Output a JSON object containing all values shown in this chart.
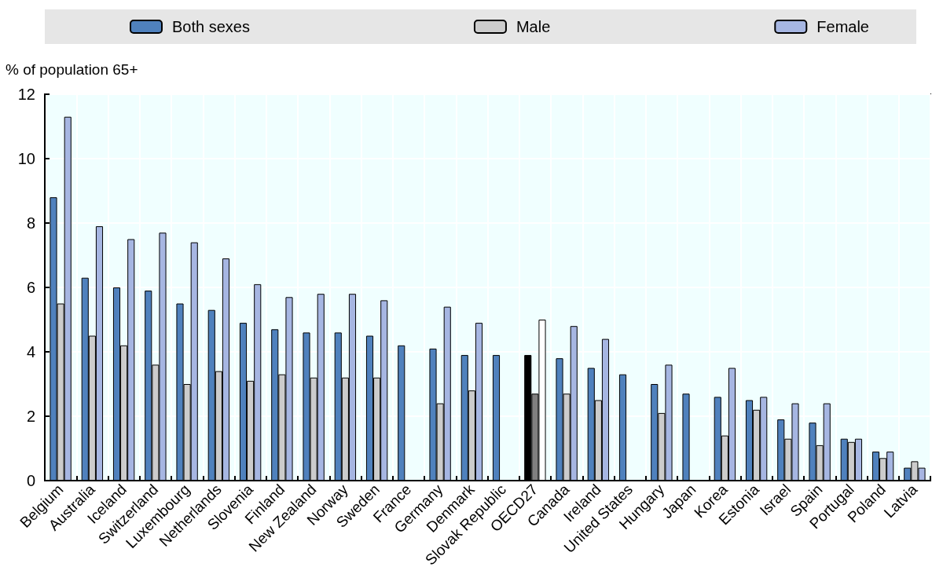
{
  "chart_data": {
    "type": "bar",
    "ylabel": "% of population 65+",
    "categories": [
      "Belgium",
      "Australia",
      "Iceland",
      "Switzerland",
      "Luxembourg",
      "Netherlands",
      "Slovenia",
      "Finland",
      "New Zealand",
      "Norway",
      "Sweden",
      "France",
      "Germany",
      "Denmark",
      "Slovak Republic",
      "OECD27",
      "Canada",
      "Ireland",
      "United States",
      "Hungary",
      "Japan",
      "Korea",
      "Estonia",
      "Israel",
      "Spain",
      "Portugal",
      "Poland",
      "Latvia"
    ],
    "series": [
      {
        "name": "Both sexes",
        "color": "#4f81bd",
        "colors": [
          "#4f81bd",
          "#4f81bd",
          "#4f81bd",
          "#4f81bd",
          "#4f81bd",
          "#4f81bd",
          "#4f81bd",
          "#4f81bd",
          "#4f81bd",
          "#4f81bd",
          "#4f81bd",
          "#4f81bd",
          "#4f81bd",
          "#4f81bd",
          "#4f81bd",
          "#000000",
          "#4f81bd",
          "#4f81bd",
          "#4f81bd",
          "#4f81bd",
          "#4f81bd",
          "#4f81bd",
          "#4f81bd",
          "#4f81bd",
          "#4f81bd",
          "#4f81bd",
          "#4f81bd",
          "#4f81bd"
        ],
        "values": [
          8.8,
          6.3,
          6.0,
          5.9,
          5.5,
          5.3,
          4.9,
          4.7,
          4.6,
          4.6,
          4.5,
          4.2,
          4.1,
          3.9,
          3.9,
          3.9,
          3.8,
          3.5,
          3.3,
          3.0,
          2.7,
          2.6,
          2.5,
          1.9,
          1.8,
          1.3,
          0.9,
          0.4
        ]
      },
      {
        "name": "Male",
        "color": "#cccccc",
        "colors": [
          "#cccccc",
          "#cccccc",
          "#cccccc",
          "#cccccc",
          "#cccccc",
          "#cccccc",
          "#cccccc",
          "#cccccc",
          "#cccccc",
          "#cccccc",
          "#cccccc",
          "#cccccc",
          "#cccccc",
          "#cccccc",
          "#cccccc",
          "#808080",
          "#cccccc",
          "#cccccc",
          "#cccccc",
          "#cccccc",
          "#cccccc",
          "#cccccc",
          "#cccccc",
          "#cccccc",
          "#cccccc",
          "#cccccc",
          "#cccccc",
          "#cccccc"
        ],
        "values": [
          5.5,
          4.5,
          4.2,
          3.6,
          3.0,
          3.4,
          3.1,
          3.3,
          3.2,
          3.2,
          3.2,
          null,
          2.4,
          2.8,
          null,
          2.7,
          2.7,
          2.5,
          null,
          2.1,
          null,
          1.4,
          2.2,
          1.3,
          1.1,
          1.2,
          0.7,
          0.6
        ]
      },
      {
        "name": "Female",
        "color": "#a6b6e2",
        "colors": [
          "#a6b6e2",
          "#a6b6e2",
          "#a6b6e2",
          "#a6b6e2",
          "#a6b6e2",
          "#a6b6e2",
          "#a6b6e2",
          "#a6b6e2",
          "#a6b6e2",
          "#a6b6e2",
          "#a6b6e2",
          "#a6b6e2",
          "#a6b6e2",
          "#a6b6e2",
          "#a6b6e2",
          "#ffffff",
          "#a6b6e2",
          "#a6b6e2",
          "#a6b6e2",
          "#a6b6e2",
          "#a6b6e2",
          "#a6b6e2",
          "#a6b6e2",
          "#a6b6e2",
          "#a6b6e2",
          "#a6b6e2",
          "#a6b6e2",
          "#a6b6e2"
        ],
        "values": [
          11.3,
          7.9,
          7.5,
          7.7,
          7.4,
          6.9,
          6.1,
          5.7,
          5.8,
          5.8,
          5.6,
          null,
          5.4,
          4.9,
          null,
          5.0,
          4.8,
          4.4,
          null,
          3.6,
          null,
          3.5,
          2.6,
          2.4,
          2.4,
          1.3,
          0.9,
          0.4
        ]
      }
    ],
    "ylim": [
      0,
      12
    ],
    "yticks": [
      0,
      2,
      4,
      6,
      8,
      10,
      12
    ],
    "grid": true,
    "legend": "top"
  }
}
